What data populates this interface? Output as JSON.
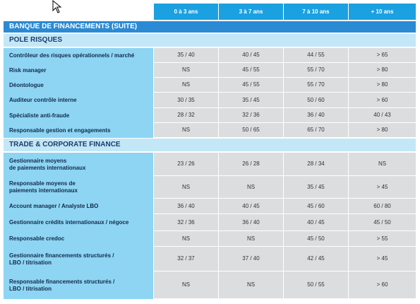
{
  "table": {
    "columns": [
      "0 à 3 ans",
      "3 à 7 ans",
      "7 à 10 ans",
      "+ 10 ans"
    ],
    "title": "BANQUE DE FINANCEMENTS (SUITE)",
    "sections": [
      {
        "title": "POLE RISQUES",
        "rows": [
          {
            "label": "Contrôleur des risques opérationnels / marché",
            "values": [
              "35 / 40",
              "40 / 45",
              "44 / 55",
              "> 65"
            ]
          },
          {
            "label": "Risk manager",
            "values": [
              "NS",
              "45 / 55",
              "55 / 70",
              "> 80"
            ]
          },
          {
            "label": "Déontologue",
            "values": [
              "NS",
              "45 / 55",
              "55 / 70",
              "> 80"
            ]
          },
          {
            "label": "Auditeur contrôle interne",
            "values": [
              "30 / 35",
              "35 / 45",
              "50 / 60",
              "> 60"
            ]
          },
          {
            "label": "Spécialiste anti-fraude",
            "values": [
              "28 / 32",
              "32 / 36",
              "36 / 40",
              "40 / 43"
            ]
          },
          {
            "label": "Responsable gestion et engagements",
            "values": [
              "NS",
              "50 / 65",
              "65 / 70",
              "> 80"
            ]
          }
        ]
      },
      {
        "title": "TRADE & CORPORATE FINANCE",
        "rows": [
          {
            "label": "Gestionnaire moyens\nde paiements internationaux",
            "values": [
              "23 / 26",
              "26 / 28",
              "28 / 34",
              "NS"
            ]
          },
          {
            "label": "Responsable moyens de\npaiements internationaux",
            "values": [
              "NS",
              "NS",
              "35 / 45",
              "> 45"
            ]
          },
          {
            "label": "Account manager / Analyste LBO",
            "values": [
              "36 / 40",
              "40 / 45",
              "45 / 60",
              "60 / 80"
            ]
          },
          {
            "label": "Gestionnaire crédits internationaux / négoce",
            "values": [
              "32 / 36",
              "36 / 40",
              "40 / 45",
              "45 / 50"
            ]
          },
          {
            "label": "Responsable credoc",
            "values": [
              "NS",
              "NS",
              "45 / 50",
              "> 55"
            ]
          },
          {
            "label": "Gestionnaire financements structurés /\nLBO / titrisation",
            "values": [
              "32 / 37",
              "37 / 40",
              "42 / 45",
              "> 45"
            ]
          },
          {
            "label": "Responsable financements structurés /\nLBO / titrisation",
            "values": [
              "NS",
              "NS",
              "50 / 55",
              "> 60"
            ]
          }
        ]
      }
    ]
  }
}
